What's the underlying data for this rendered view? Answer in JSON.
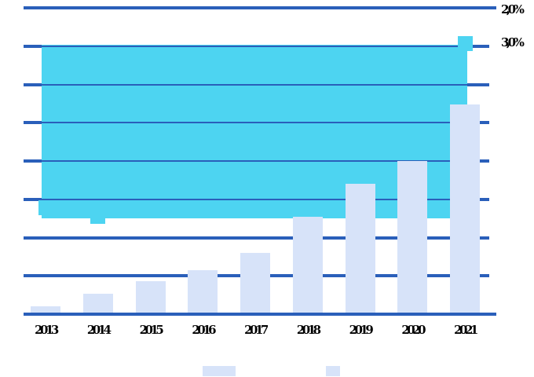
{
  "colors": {
    "background": "#ffffff",
    "gridline": "#2a5fba",
    "bar_fill": "#d7e3f9",
    "area_fill": "#4dd4f1",
    "label_text": "#000000"
  },
  "chart_data": {
    "type": "bar",
    "title": "",
    "xlabel": "",
    "ylabel": "",
    "categories": [
      "2013",
      "2014",
      "2015",
      "2016",
      "2017",
      "2018",
      "2019",
      "2020",
      "2021"
    ],
    "series": [
      {
        "name": "bar-series",
        "type": "bar",
        "color": "#d7e3f9",
        "values": [
          0.1,
          0.27,
          0.43,
          0.57,
          0.8,
          1.27,
          1.7,
          2.0,
          2.74
        ]
      },
      {
        "name": "cyan-band-series",
        "type": "area",
        "color": "#4dd4f1",
        "band": {
          "top_value": 3.52,
          "bottom_value": 1.25
        },
        "markers": [
          {
            "category_index": 0,
            "value": 1.39
          },
          {
            "category_index": 1,
            "value": 1.28
          },
          {
            "category_index": 8,
            "value": 3.53
          }
        ]
      }
    ],
    "y_axis": {
      "min": 0,
      "max": 4,
      "tick_step": 0.5,
      "gridlines": true,
      "tick_labels_visible": false
    },
    "right_axis_labels": [
      {
        "text": "2,0%",
        "at_value": 4.0
      },
      {
        "text": "3,0%",
        "at_value": 3.5
      }
    ],
    "legend": {
      "position": "bottom",
      "clipped": true,
      "swatches": [
        {
          "color": "#d7e3f9"
        },
        {
          "color": "#d7e3f9"
        }
      ]
    }
  }
}
